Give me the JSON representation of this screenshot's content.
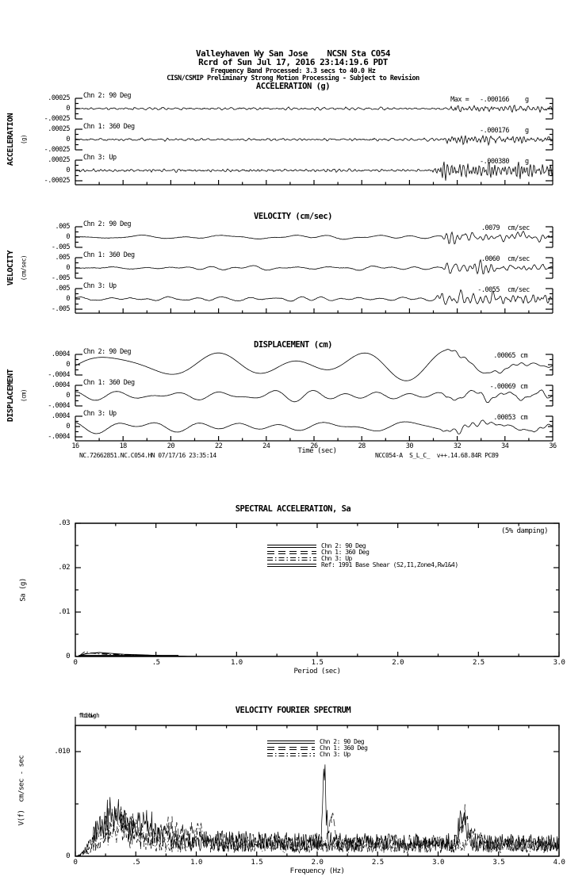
{
  "header": {
    "line1": "Valleyhaven Wy San Jose    NCSN Sta C054",
    "line2": "Rcrd of Sun Jul 17, 2016 23:14:19.6 PDT",
    "line3": "Frequency Band Processed: 3.3 secs to 40.0 Hz",
    "line4": "CISN/CSMIP Preliminary Strong Motion Processing - Subject to Revision"
  },
  "footer": {
    "left": "NC.72662851.NC.C054.HN 07/17/16 23:35:14",
    "right": "NCC054-A  S_L_C_  v++.14.68.84R PC89"
  },
  "colors": {
    "ink": "#000000",
    "paper": "#ffffff"
  },
  "chart_data": [
    {
      "id": "accel",
      "type": "line",
      "title": "ACCELERATION (g)",
      "ylabel": "ACCELERATION",
      "yunit": "(g)",
      "y_tick_labels": {
        "top": ".00025",
        "mid": "0",
        "bot": "-.00025"
      },
      "x_axis": {
        "label": null,
        "min": 16,
        "max": 36,
        "tick_labels": [
          "16",
          "18",
          "20",
          "22",
          "24",
          "26",
          "28",
          "30",
          "32",
          "34",
          "36"
        ]
      },
      "traces": [
        {
          "label": "Chn 2: 90 Deg",
          "max_text": "Max =   -.000166",
          "max_numeric": -0.000166,
          "unit": "g",
          "gen": {
            "seed": 11,
            "f_min": 1.5,
            "f_max": 6,
            "n": 14,
            "amp": 0.8,
            "jitter": 1.1,
            "burst_t": 31.4,
            "burst_amp": 3.6,
            "burst_f_min": 2.5,
            "burst_f_max": 8,
            "burst_decay": 2.2
          }
        },
        {
          "label": "Chn 1: 360 Deg",
          "max_text": "-.000176",
          "max_numeric": -0.000176,
          "unit": "g",
          "gen": {
            "seed": 23,
            "f_min": 1.5,
            "f_max": 6,
            "n": 14,
            "amp": 0.8,
            "jitter": 1.1,
            "burst_t": 31.4,
            "burst_amp": 4.2,
            "burst_f_min": 2.5,
            "burst_f_max": 8,
            "burst_decay": 2.2
          }
        },
        {
          "label": "Chn 3: Up",
          "max_text": "-.000380",
          "max_numeric": -0.00038,
          "unit": "g",
          "gen": {
            "seed": 37,
            "f_min": 1.8,
            "f_max": 7,
            "n": 14,
            "amp": 0.9,
            "jitter": 1.3,
            "burst_t": 30.9,
            "burst_amp": 8.5,
            "burst_f_min": 3,
            "burst_f_max": 9,
            "burst_decay": 3.0
          }
        }
      ]
    },
    {
      "id": "vel",
      "type": "line",
      "title": "VELOCITY (cm/sec)",
      "ylabel": "VELOCITY",
      "yunit": "(cm/sec)",
      "y_tick_labels": {
        "top": ".005",
        "mid": "0",
        "bot": "-.005"
      },
      "traces": [
        {
          "label": "Chn 2: 90 Deg",
          "max_text": ".0079",
          "max_numeric": 0.0079,
          "unit": "cm/sec",
          "gen": {
            "seed": 51,
            "f_min": 0.15,
            "f_max": 0.9,
            "n": 8,
            "amp": 2.2,
            "jitter": 0.4,
            "burst_t": 31.3,
            "burst_amp": 5.5,
            "burst_f_min": 1.5,
            "burst_f_max": 5,
            "burst_decay": 2.0
          }
        },
        {
          "label": "Chn 1: 360 Deg",
          "max_text": ".0060",
          "max_numeric": 0.006,
          "unit": "cm/sec",
          "gen": {
            "seed": 67,
            "f_min": 0.2,
            "f_max": 1.2,
            "n": 10,
            "amp": 1.6,
            "jitter": 0.5,
            "burst_t": 31.3,
            "burst_amp": 5.0,
            "burst_f_min": 1.5,
            "burst_f_max": 5,
            "burst_decay": 2.0
          }
        },
        {
          "label": "Chn 3: Up",
          "max_text": "-.0055",
          "max_numeric": -0.0055,
          "unit": "cm/sec",
          "gen": {
            "seed": 83,
            "f_min": 0.25,
            "f_max": 1.5,
            "n": 10,
            "amp": 1.6,
            "jitter": 0.6,
            "burst_t": 31.0,
            "burst_amp": 7.5,
            "burst_f_min": 2,
            "burst_f_max": 6,
            "burst_decay": 2.5
          }
        }
      ]
    },
    {
      "id": "disp",
      "type": "line",
      "title": "DISPLACEMENT (cm)",
      "ylabel": "DISPLACEMENT",
      "yunit": "(cm)",
      "y_tick_labels": {
        "top": ".0004",
        "mid": "0",
        "bot": "-.0004"
      },
      "x_axis": {
        "label": "Time (sec)",
        "min": 16,
        "max": 36,
        "tick_labels": [
          "16",
          "18",
          "20",
          "22",
          "24",
          "26",
          "28",
          "30",
          "32",
          "34",
          "36"
        ]
      },
      "traces": [
        {
          "label": "Chn 2: 90 Deg",
          "max_text": ".00065",
          "max_numeric": 0.00065,
          "unit": "cm",
          "gen": {
            "seed": 101,
            "f_min": 0.18,
            "f_max": 0.42,
            "n": 5,
            "amp": 9,
            "jitter": 0,
            "burst_t": 31.5,
            "burst_amp": 2.5,
            "burst_f_min": 1,
            "burst_f_max": 3,
            "burst_decay": 3.0
          }
        },
        {
          "label": "Chn 1: 360 Deg",
          "max_text": "-.00069",
          "max_numeric": -0.00069,
          "unit": "cm",
          "gen": {
            "seed": 113,
            "f_min": 0.3,
            "f_max": 0.9,
            "n": 7,
            "amp": 3.5,
            "jitter": 0.3,
            "burst_t": 31.3,
            "burst_amp": 3.0,
            "burst_f_min": 1,
            "burst_f_max": 3,
            "burst_decay": 3.0
          }
        },
        {
          "label": "Chn 3: Up",
          "max_text": ".00053",
          "max_numeric": 0.00053,
          "unit": "cm",
          "gen": {
            "seed": 131,
            "f_min": 0.25,
            "f_max": 0.7,
            "n": 6,
            "amp": 4.5,
            "jitter": 0.3,
            "burst_t": 31.2,
            "burst_amp": 2.5,
            "burst_f_min": 1,
            "burst_f_max": 3,
            "burst_decay": 3.0
          }
        }
      ]
    },
    {
      "id": "sa",
      "type": "line",
      "title": "SPECTRAL ACCELERATION, Sa",
      "annotation": "(5% damping)",
      "xlabel": "Period (sec)",
      "ylabel": "Sa (g)",
      "xlim": [
        0,
        3.0
      ],
      "ylim": [
        0,
        0.03
      ],
      "x_tick_labels": [
        "0",
        ".5",
        "1.0",
        "1.5",
        "2.0",
        "2.5",
        "3.0"
      ],
      "y_tick_labels": [
        "0",
        ".01",
        ".02",
        ".03"
      ],
      "legend": [
        {
          "label": "Chn 2: 90 Deg",
          "style": "solid"
        },
        {
          "label": "Chn 1: 360 Deg",
          "style": "dash"
        },
        {
          "label": "Chn 3: Up",
          "style": "dashdot"
        },
        {
          "label": "Ref: 1991 Base Shear (S2,I1,Zone4,Rw1&4)",
          "style": "solid"
        }
      ],
      "series": [
        {
          "name": "Chn 2: 90 Deg",
          "style": "solid",
          "width": 0.9,
          "points": [
            [
              0.03,
              0.0002
            ],
            [
              0.06,
              0.00055
            ],
            [
              0.1,
              0.00075
            ],
            [
              0.15,
              0.0009
            ],
            [
              0.22,
              0.0007
            ],
            [
              0.3,
              0.0005
            ],
            [
              0.42,
              0.00038
            ],
            [
              0.52,
              0.00022
            ],
            [
              0.62,
              0.0001
            ],
            [
              0.7,
              3e-05
            ],
            [
              0.8,
              0.0
            ]
          ]
        },
        {
          "name": "Chn 1: 360 Deg",
          "style": "dash",
          "width": 0.9,
          "points": [
            [
              0.03,
              0.00025
            ],
            [
              0.07,
              0.0007
            ],
            [
              0.12,
              0.0008
            ],
            [
              0.18,
              0.00065
            ],
            [
              0.26,
              0.0005
            ],
            [
              0.36,
              0.0004
            ],
            [
              0.48,
              0.00025
            ],
            [
              0.6,
              0.0001
            ],
            [
              0.7,
              0.0
            ]
          ]
        },
        {
          "name": "Chn 3: Up",
          "style": "dashdot",
          "width": 0.9,
          "points": [
            [
              0.03,
              0.0003
            ],
            [
              0.06,
              0.0011
            ],
            [
              0.09,
              0.0008
            ],
            [
              0.14,
              0.0006
            ],
            [
              0.2,
              0.00045
            ],
            [
              0.3,
              0.00035
            ],
            [
              0.45,
              0.0002
            ],
            [
              0.6,
              8e-05
            ],
            [
              0.7,
              0.0
            ]
          ]
        },
        {
          "name": "Ref: 1991 Base Shear (S2,I1,Zone4,Rw1&4)",
          "style": "solid",
          "width": 1.6,
          "points": [
            [
              0.02,
              0.0002
            ],
            [
              0.64,
              0.0002
            ]
          ]
        }
      ]
    },
    {
      "id": "fourier",
      "type": "line",
      "title": "VELOCITY FOURIER SPECTRUM",
      "marker_labels": [
        "fcLow",
        "fcHigh"
      ],
      "xlabel": "Frequency (Hz)",
      "ylabel": "V(f)  cm/sec - sec",
      "xlim": [
        0,
        4.0
      ],
      "ylim": [
        0,
        0.0125
      ],
      "x_tick_labels": [
        "0",
        ".5",
        "1.0",
        "1.5",
        "2.0",
        "2.5",
        "3.0",
        "3.5",
        "4.0"
      ],
      "y_tick_labels": [
        "0",
        ".010"
      ],
      "legend": [
        {
          "label": "Chn 2: 90 Deg",
          "style": "solid"
        },
        {
          "label": "Chn 1: 360 Deg",
          "style": "dash"
        },
        {
          "label": "Chn 3: Up",
          "style": "dashdot"
        }
      ],
      "series_gen": [
        {
          "name": "Chn 2: 90 Deg",
          "style": "solid",
          "seed": 201,
          "base": 0.0026,
          "humps": [
            [
              0.3,
              0.004,
              0.12
            ],
            [
              0.55,
              0.0025,
              0.15
            ]
          ],
          "peaks": [
            [
              2.06,
              0.0078,
              0.02
            ],
            [
              3.2,
              0.003,
              0.05
            ]
          ]
        },
        {
          "name": "Chn 1: 360 Deg",
          "style": "dash",
          "seed": 202,
          "base": 0.0024,
          "humps": [
            [
              0.32,
              0.0035,
              0.1
            ],
            [
              0.8,
              0.002,
              0.2
            ]
          ],
          "peaks": [
            [
              2.12,
              0.0035,
              0.03
            ],
            [
              3.22,
              0.0035,
              0.04
            ]
          ]
        },
        {
          "name": "Chn 3: Up",
          "style": "dashdot",
          "seed": 203,
          "base": 0.002,
          "humps": [
            [
              0.42,
              0.003,
              0.15
            ]
          ],
          "peaks": [
            [
              1.02,
              0.0022,
              0.04
            ],
            [
              3.3,
              0.002,
              0.05
            ]
          ]
        }
      ]
    }
  ]
}
